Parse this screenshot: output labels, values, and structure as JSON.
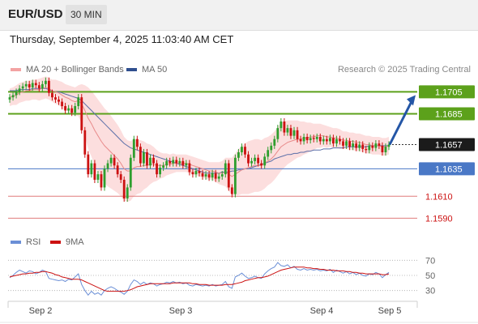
{
  "header": {
    "symbol": "EUR/USD",
    "timeframe": "30 MIN",
    "datetime": "Thursday, September 4, 2025 11:03:40 AM CET"
  },
  "legend": {
    "ma20": "MA 20 + Bollinger Bands",
    "ma50": "MA 50",
    "rsi": "RSI",
    "ma9": "9MA",
    "research": "Research © 2025 Trading Central"
  },
  "colors": {
    "bullish": "#2e9e2e",
    "bearish": "#cc1111",
    "band": "#fbd3d3",
    "ma20": "#e88a8a",
    "ma50": "#5b6fa8",
    "resistance": "#5ca11b",
    "support_blue": "#4a78c6",
    "support_red": "#e07b7b",
    "arrow": "#2456a6",
    "rsi": "#6b8fd6",
    "rsi_ma": "#cc1111"
  },
  "chart_data": {
    "type": "candlestick",
    "ylim": [
      1.158,
      1.172
    ],
    "x_labels": [
      "Sep 2",
      "Sep 3",
      "Sep 4",
      "Sep 5"
    ],
    "current_price": {
      "value": 1.1657,
      "label": "1.1657"
    },
    "levels": [
      {
        "value": 1.1705,
        "label": "1.1705",
        "style": "resistance"
      },
      {
        "value": 1.1685,
        "label": "1.1685",
        "style": "resistance"
      },
      {
        "value": 1.1635,
        "label": "1.1635",
        "style": "support_blue"
      },
      {
        "value": 1.161,
        "label": "1.1610",
        "style": "support_red"
      },
      {
        "value": 1.159,
        "label": "1.1590",
        "style": "support_red"
      }
    ],
    "close": [
      1.17,
      1.1702,
      1.1705,
      1.1708,
      1.171,
      1.1712,
      1.1709,
      1.1713,
      1.1711,
      1.1708,
      1.1712,
      1.1715,
      1.1704,
      1.17,
      1.1698,
      1.1696,
      1.1692,
      1.1688,
      1.169,
      1.1686,
      1.1692,
      1.17,
      1.167,
      1.1648,
      1.163,
      1.164,
      1.1625,
      1.163,
      1.1618,
      1.1635,
      1.164,
      1.1645,
      1.1638,
      1.163,
      1.1625,
      1.1608,
      1.1618,
      1.1645,
      1.1662,
      1.1655,
      1.164,
      1.165,
      1.1638,
      1.1645,
      1.164,
      1.163,
      1.1636,
      1.1638,
      1.1642,
      1.164,
      1.1643,
      1.164,
      1.1642,
      1.1638,
      1.164,
      1.1632,
      1.163,
      1.1633,
      1.1631,
      1.1628,
      1.163,
      1.1627,
      1.1631,
      1.1626,
      1.1628,
      1.163,
      1.164,
      1.1618,
      1.1612,
      1.1645,
      1.165,
      1.1655,
      1.1648,
      1.164,
      1.1642,
      1.1645,
      1.164,
      1.1638,
      1.1646,
      1.1652,
      1.1656,
      1.1662,
      1.1672,
      1.1678,
      1.1668,
      1.1672,
      1.1665,
      1.167,
      1.1662,
      1.166,
      1.1664,
      1.1661,
      1.1663,
      1.1662,
      1.1664,
      1.166,
      1.1662,
      1.166,
      1.1663,
      1.1658,
      1.1662,
      1.166,
      1.1656,
      1.166,
      1.1655,
      1.1658,
      1.1654,
      1.1657,
      1.1653,
      1.1652,
      1.1656,
      1.1654,
      1.1658,
      1.1656,
      1.165,
      1.1655,
      1.1657
    ],
    "ma20": [
      1.17,
      1.1701,
      1.1702,
      1.1704,
      1.1705,
      1.1706,
      1.1706,
      1.1707,
      1.1707,
      1.1707,
      1.1708,
      1.1709,
      1.1708,
      1.1706,
      1.1705,
      1.1704,
      1.1702,
      1.17,
      1.1699,
      1.1697,
      1.1696,
      1.1697,
      1.1694,
      1.1688,
      1.1681,
      1.1676,
      1.167,
      1.1665,
      1.166,
      1.1656,
      1.1653,
      1.165,
      1.1647,
      1.1644,
      1.164,
      1.1635,
      1.1633,
      1.1633,
      1.1636,
      1.1637,
      1.1637,
      1.1638,
      1.1638,
      1.1639,
      1.1639,
      1.1638,
      1.1638,
      1.1638,
      1.1639,
      1.1639,
      1.164,
      1.164,
      1.164,
      1.164,
      1.164,
      1.1639,
      1.1638,
      1.1637,
      1.1636,
      1.1635,
      1.1634,
      1.1633,
      1.1633,
      1.1632,
      1.1631,
      1.1631,
      1.1632,
      1.163,
      1.1628,
      1.163,
      1.1632,
      1.1634,
      1.1635,
      1.1636,
      1.1637,
      1.1638,
      1.1638,
      1.1638,
      1.164,
      1.1642,
      1.1644,
      1.1647,
      1.1651,
      1.1655,
      1.1657,
      1.1659,
      1.166,
      1.1661,
      1.1662,
      1.1662,
      1.1663,
      1.1663,
      1.1664,
      1.1664,
      1.1665,
      1.1665,
      1.1665,
      1.1664,
      1.1664,
      1.1663,
      1.1663,
      1.1662,
      1.1661,
      1.1661,
      1.166,
      1.166,
      1.1659,
      1.1659,
      1.1658,
      1.1657,
      1.1657,
      1.1656,
      1.1656,
      1.1656,
      1.1655,
      1.1655,
      1.1656
    ],
    "ma50": [
      1.1706,
      1.1706,
      1.1706,
      1.1707,
      1.1707,
      1.1707,
      1.1707,
      1.1708,
      1.1708,
      1.1708,
      1.1708,
      1.1708,
      1.1707,
      1.1706,
      1.1705,
      1.1705,
      1.1704,
      1.1703,
      1.1702,
      1.1701,
      1.17,
      1.1699,
      1.1697,
      1.1694,
      1.1691,
      1.1688,
      1.1685,
      1.1682,
      1.1679,
      1.1676,
      1.1673,
      1.167,
      1.1667,
      1.1664,
      1.1661,
      1.1658,
      1.1656,
      1.1654,
      1.1653,
      1.1652,
      1.1651,
      1.165,
      1.1649,
      1.1648,
      1.1647,
      1.1646,
      1.1645,
      1.1644,
      1.1643,
      1.1642,
      1.1641,
      1.164,
      1.1639,
      1.1638,
      1.1637,
      1.1636,
      1.1635,
      1.1634,
      1.1633,
      1.1632,
      1.1631,
      1.1631,
      1.1631,
      1.1631,
      1.1631,
      1.1632,
      1.1632,
      1.1632,
      1.1633,
      1.1633,
      1.1634,
      1.1634,
      1.1635,
      1.1635,
      1.1636,
      1.1637,
      1.1638,
      1.1639,
      1.164,
      1.1641,
      1.1642,
      1.1644,
      1.1645,
      1.1646,
      1.1647,
      1.1648,
      1.1648,
      1.1649,
      1.1649,
      1.165,
      1.165,
      1.1651,
      1.1651,
      1.1652,
      1.1652,
      1.1652,
      1.1653,
      1.1653,
      1.1653,
      1.1654,
      1.1654,
      1.1654,
      1.1654,
      1.1655,
      1.1655,
      1.1655,
      1.1655,
      1.1655,
      1.1655,
      1.1655,
      1.1656,
      1.1656,
      1.1656,
      1.1656,
      1.1656,
      1.1656,
      1.1656
    ],
    "band_width": [
      0.0008,
      0.0008,
      0.0009,
      0.0009,
      0.0009,
      0.0009,
      0.0009,
      0.0009,
      0.0009,
      0.001,
      0.001,
      0.001,
      0.001,
      0.001,
      0.0011,
      0.0011,
      0.0012,
      0.0012,
      0.0012,
      0.0013,
      0.0013,
      0.0014,
      0.0018,
      0.0023,
      0.0028,
      0.003,
      0.0032,
      0.0033,
      0.0034,
      0.0034,
      0.0034,
      0.0033,
      0.0032,
      0.0031,
      0.003,
      0.0029,
      0.0028,
      0.0027,
      0.0026,
      0.0025,
      0.0024,
      0.0022,
      0.002,
      0.0018,
      0.0016,
      0.0014,
      0.0012,
      0.0011,
      0.001,
      0.0009,
      0.0009,
      0.0008,
      0.0008,
      0.0008,
      0.0008,
      0.0008,
      0.0008,
      0.0008,
      0.0008,
      0.0008,
      0.0008,
      0.0008,
      0.0008,
      0.0009,
      0.001,
      0.0011,
      0.0013,
      0.0015,
      0.0017,
      0.0019,
      0.0021,
      0.0022,
      0.0023,
      0.0024,
      0.0024,
      0.0024,
      0.0024,
      0.0023,
      0.0023,
      0.0022,
      0.0022,
      0.0022,
      0.0022,
      0.0022,
      0.0021,
      0.002,
      0.0019,
      0.0018,
      0.0017,
      0.0016,
      0.0015,
      0.0014,
      0.0013,
      0.0012,
      0.0011,
      0.0011,
      0.001,
      0.001,
      0.0009,
      0.0009,
      0.0009,
      0.0009,
      0.0008,
      0.0008,
      0.0008,
      0.0008,
      0.0008,
      0.0008,
      0.0008,
      0.0008,
      0.0008,
      0.0008,
      0.0008,
      0.0008,
      0.0008,
      0.0008,
      0.0008
    ],
    "rsi": {
      "ylim": [
        20,
        80
      ],
      "ticks": [
        70,
        50,
        30
      ],
      "values": [
        47,
        50,
        54,
        57,
        55,
        53,
        56,
        55,
        52,
        54,
        57,
        55,
        46,
        45,
        44,
        43,
        44,
        42,
        45,
        44,
        48,
        52,
        38,
        30,
        24,
        29,
        25,
        27,
        24,
        30,
        33,
        35,
        33,
        30,
        28,
        25,
        29,
        38,
        44,
        42,
        38,
        41,
        38,
        40,
        39,
        36,
        38,
        39,
        41,
        40,
        42,
        40,
        41,
        39,
        40,
        37,
        36,
        38,
        37,
        36,
        37,
        36,
        38,
        36,
        37,
        38,
        42,
        35,
        33,
        48,
        50,
        53,
        49,
        46,
        47,
        49,
        47,
        46,
        52,
        56,
        59,
        61,
        67,
        63,
        62,
        64,
        60,
        62,
        58,
        57,
        59,
        57,
        58,
        57,
        58,
        56,
        57,
        56,
        58,
        54,
        57,
        55,
        53,
        55,
        52,
        54,
        51,
        53,
        50,
        49,
        52,
        51,
        54,
        52,
        47,
        51,
        54
      ],
      "ma9": [
        48,
        49,
        50,
        51,
        52,
        52,
        53,
        53,
        54,
        54,
        55,
        55,
        54,
        53,
        51,
        50,
        48,
        47,
        46,
        45,
        45,
        45,
        44,
        42,
        40,
        38,
        36,
        34,
        32,
        30,
        29,
        29,
        29,
        29,
        29,
        29,
        30,
        31,
        33,
        35,
        36,
        37,
        38,
        39,
        39,
        39,
        39,
        39,
        39,
        39,
        40,
        40,
        40,
        40,
        40,
        40,
        39,
        39,
        38,
        38,
        38,
        37,
        37,
        37,
        37,
        37,
        38,
        38,
        38,
        39,
        40,
        41,
        43,
        44,
        45,
        46,
        47,
        47,
        48,
        49,
        51,
        53,
        55,
        57,
        58,
        59,
        60,
        61,
        61,
        61,
        61,
        60,
        60,
        59,
        59,
        58,
        58,
        57,
        57,
        57,
        56,
        56,
        56,
        55,
        55,
        54,
        54,
        53,
        53,
        52,
        52,
        52,
        52,
        52,
        51,
        51,
        52
      ]
    }
  }
}
